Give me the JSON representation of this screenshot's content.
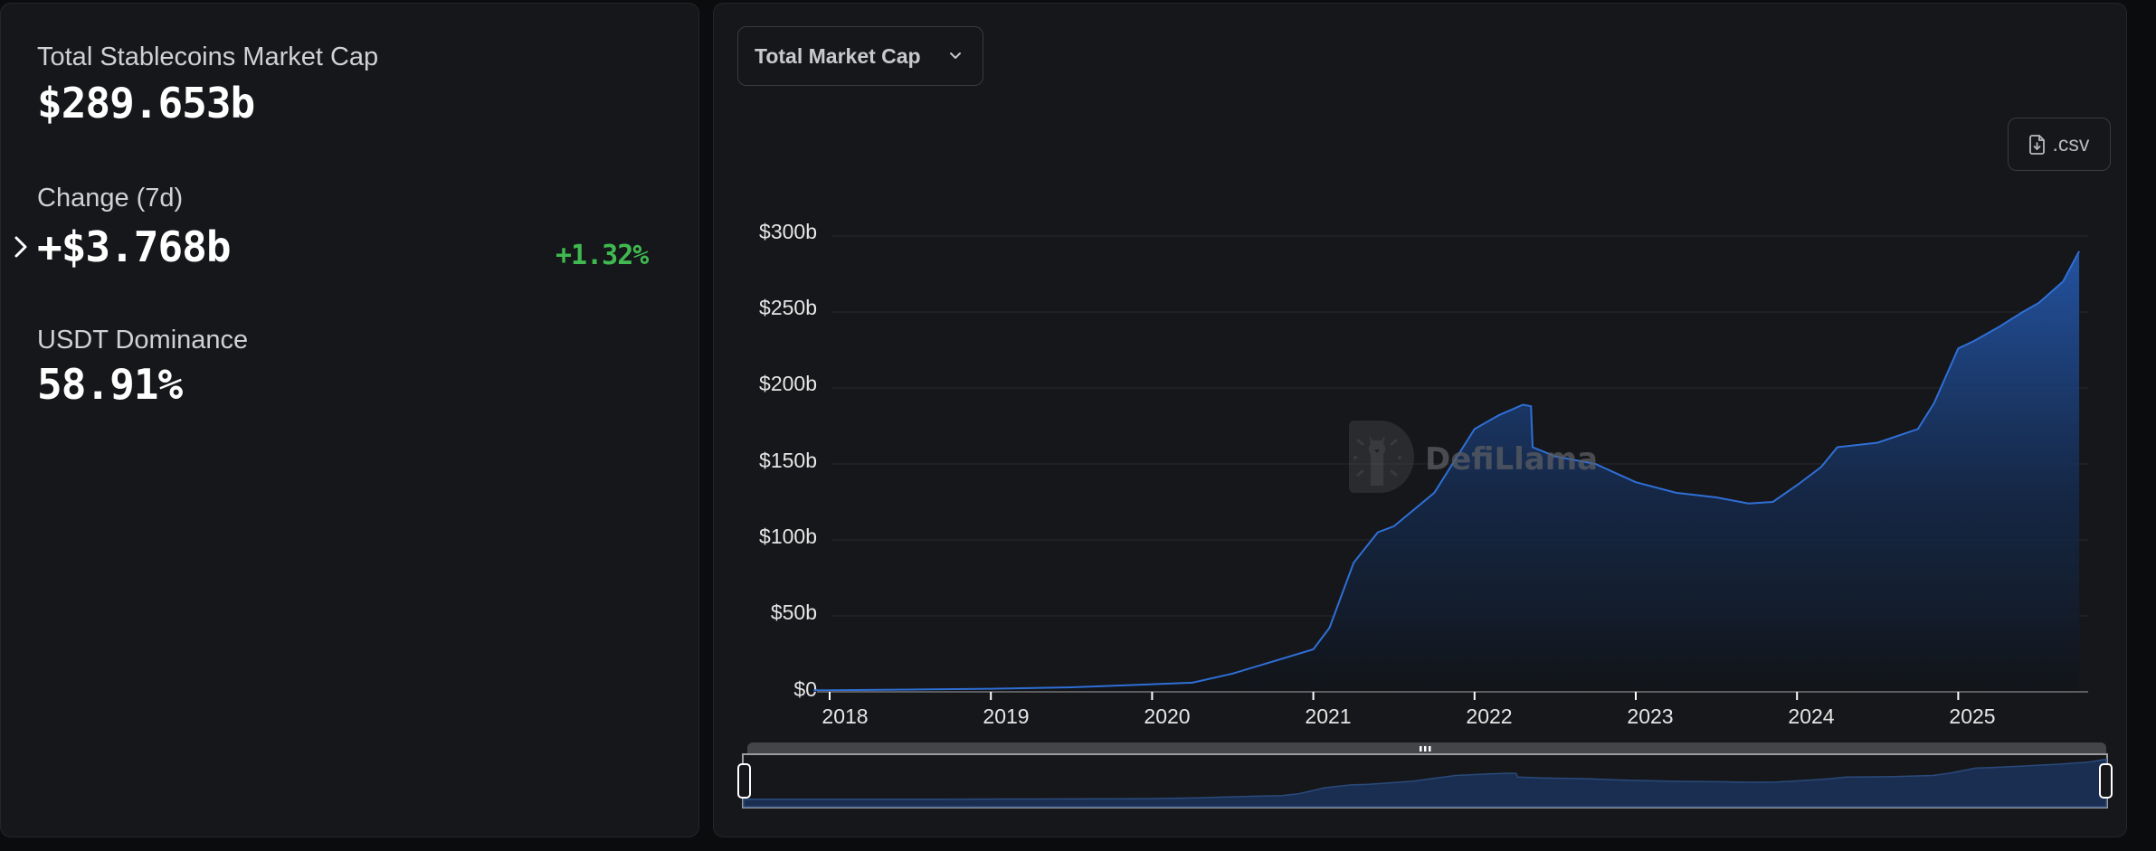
{
  "summary": {
    "total_label": "Total Stablecoins Market Cap",
    "total_value": "$289.653b",
    "change_label": "Change (7d)",
    "change_value": "+$3.768b",
    "change_pct": "+1.32%",
    "dominance_label": "USDT Dominance",
    "dominance_value": "58.91%"
  },
  "controls": {
    "dropdown_label": "Total Market Cap",
    "csv_label": ".csv"
  },
  "watermark": "DefiLlama",
  "colors": {
    "background": "#0b0c0e",
    "panel": "#16171a",
    "line": "#2f6fd6",
    "positive": "#3fb950"
  },
  "icons": {
    "expand": "chevron-right-icon",
    "dropdown": "chevron-down-icon",
    "csv": "file-download-icon",
    "brush_center": "grip-icon"
  },
  "chart_data": {
    "type": "area",
    "title": "Total Market Cap",
    "xlabel": "",
    "ylabel": "",
    "y_ticks": [
      "$0",
      "$50b",
      "$100b",
      "$150b",
      "$200b",
      "$250b",
      "$300b"
    ],
    "x_ticks": [
      "2018",
      "2019",
      "2020",
      "2021",
      "2022",
      "2023",
      "2024",
      "2025"
    ],
    "ylim": [
      0,
      300
    ],
    "grid": true,
    "legend": "none",
    "x": [
      2017.9,
      2018.0,
      2018.5,
      2019.0,
      2019.5,
      2020.0,
      2020.25,
      2020.5,
      2020.75,
      2021.0,
      2021.1,
      2021.25,
      2021.4,
      2021.5,
      2021.75,
      2022.0,
      2022.15,
      2022.3,
      2022.35,
      2022.36,
      2022.5,
      2022.75,
      2023.0,
      2023.25,
      2023.5,
      2023.7,
      2023.85,
      2024.0,
      2024.15,
      2024.25,
      2024.5,
      2024.75,
      2024.85,
      2025.0,
      2025.1,
      2025.25,
      2025.4,
      2025.5,
      2025.65,
      2025.75
    ],
    "series": [
      {
        "name": "Total Stablecoins Market Cap ($b)",
        "values": [
          1,
          1,
          1.5,
          2,
          3,
          5,
          6,
          12,
          20,
          28,
          42,
          85,
          105,
          109,
          131,
          173,
          182,
          189,
          188,
          161,
          155,
          150,
          138,
          131,
          128,
          124,
          125,
          136,
          148,
          161,
          164,
          173,
          190,
          226,
          231,
          240,
          250,
          256,
          270,
          290
        ]
      }
    ]
  }
}
